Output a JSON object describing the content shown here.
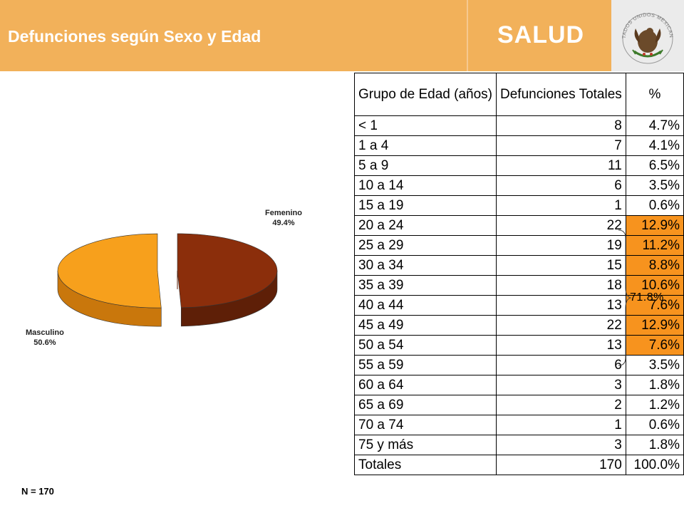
{
  "header": {
    "title": "Defunciones según Sexo y Edad",
    "brand": "SALUD",
    "seal_text": "ESTADOS UNIDOS MEXICANOS"
  },
  "colors": {
    "header_bg": "#F2B15A",
    "highlight": "#F7931E",
    "femenino": "#8B2E0B",
    "masculino": "#F7A01C"
  },
  "chart_data": {
    "type": "pie",
    "title": "",
    "slices": [
      {
        "label": "Femenino",
        "value": 49.4,
        "display": "49.4%"
      },
      {
        "label": "Masculino",
        "value": 50.6,
        "display": "50.6%"
      }
    ]
  },
  "note": "N = 170",
  "table": {
    "headers": [
      "Grupo de Edad (años)",
      "Defunciones Totales",
      "%"
    ],
    "rows": [
      {
        "group": "< 1",
        "deaths": "8",
        "pct": "4.7%",
        "hl": false
      },
      {
        "group": "1 a 4",
        "deaths": "7",
        "pct": "4.1%",
        "hl": false
      },
      {
        "group": "5 a 9",
        "deaths": "11",
        "pct": "6.5%",
        "hl": false
      },
      {
        "group": "10 a 14",
        "deaths": "6",
        "pct": "3.5%",
        "hl": false
      },
      {
        "group": "15 a 19",
        "deaths": "1",
        "pct": "0.6%",
        "hl": false
      },
      {
        "group": "20 a 24",
        "deaths": "22",
        "pct": "12.9%",
        "hl": true
      },
      {
        "group": "25 a 29",
        "deaths": "19",
        "pct": "11.2%",
        "hl": true
      },
      {
        "group": "30 a 34",
        "deaths": "15",
        "pct": "8.8%",
        "hl": true
      },
      {
        "group": "35 a 39",
        "deaths": "18",
        "pct": "10.6%",
        "hl": true
      },
      {
        "group": "40 a 44",
        "deaths": "13",
        "pct": "7.6%",
        "hl": true
      },
      {
        "group": "45 a 49",
        "deaths": "22",
        "pct": "12.9%",
        "hl": true
      },
      {
        "group": "50 a 54",
        "deaths": "13",
        "pct": "7.6%",
        "hl": true
      },
      {
        "group": "55 a 59",
        "deaths": "6",
        "pct": "3.5%",
        "hl": false
      },
      {
        "group": "60 a 64",
        "deaths": "3",
        "pct": "1.8%",
        "hl": false
      },
      {
        "group": "65 a 69",
        "deaths": "2",
        "pct": "1.2%",
        "hl": false
      },
      {
        "group": "70 a 74",
        "deaths": "1",
        "pct": "0.6%",
        "hl": false
      },
      {
        "group": "75 y más",
        "deaths": "3",
        "pct": "1.8%",
        "hl": false
      },
      {
        "group": "Totales",
        "deaths": "170",
        "pct": "100.0%",
        "hl": false
      }
    ],
    "bracket_label": "71.8%"
  }
}
